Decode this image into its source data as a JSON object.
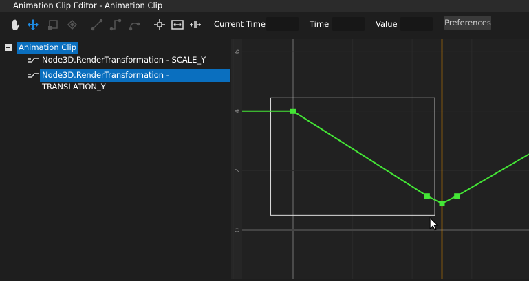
{
  "window": {
    "title": "Animation Clip Editor - Animation Clip"
  },
  "toolbar": {
    "tools": [
      "hand-icon",
      "move-icon",
      "scale-icon",
      "keyframe-icon",
      "linear-icon",
      "step-icon",
      "smooth-icon",
      "center-icon",
      "fit-icon",
      "expand-icon"
    ],
    "current_time_label": "Current Time",
    "current_time_value": "",
    "time_label": "Time",
    "time_value": "",
    "value_label": "Value",
    "value_value": "",
    "preferences_label": "Preferences"
  },
  "tree": {
    "root": "Animation Clip",
    "items": [
      {
        "label": "Node3D.RenderTransformation - SCALE_Y",
        "selected": false
      },
      {
        "label": "Node3D.RenderTransformation - TRANSLATION_Y",
        "selected": true
      }
    ]
  },
  "chart_data": {
    "type": "line",
    "y_ticks": [
      "6",
      "4",
      "2",
      "0"
    ],
    "ylim": [
      -1.6,
      6.4
    ],
    "keyframes": [
      {
        "x": 0,
        "y": 4
      },
      {
        "x": 4.5,
        "y": 1.15
      },
      {
        "x": 5.0,
        "y": 0.9
      },
      {
        "x": 5.5,
        "y": 1.15
      }
    ],
    "curve_color": "#44e636",
    "cursor_time": 5.0,
    "cursor_color": "#e08a00",
    "selection": {
      "x0": -0.75,
      "x1": 4.76,
      "y0": 0.5,
      "y1": 4.45
    }
  }
}
